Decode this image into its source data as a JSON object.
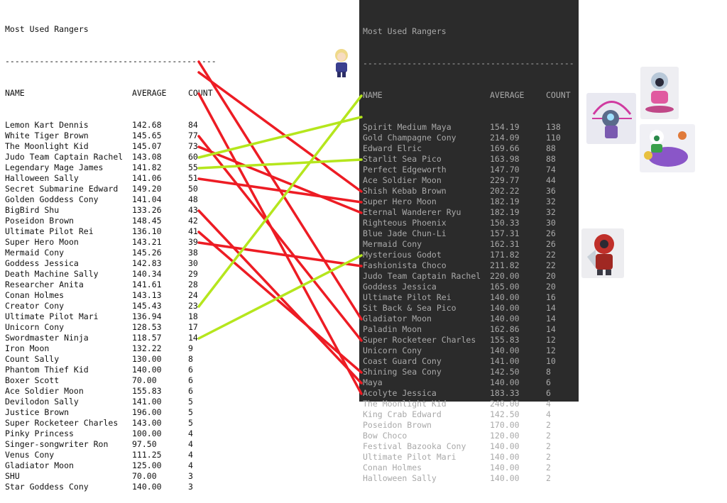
{
  "left_table": {
    "title": "Most Used Rangers",
    "separator": "-------------------------------------------",
    "headers": [
      "NAME",
      "AVERAGE",
      "COUNT"
    ],
    "rows": [
      [
        "Lemon Kart Dennis",
        "142.68",
        "84"
      ],
      [
        "White Tiger Brown",
        "145.65",
        "77"
      ],
      [
        "The Moonlight Kid",
        "145.07",
        "73"
      ],
      [
        "Judo Team Captain Rachel",
        "143.08",
        "60"
      ],
      [
        "Legendary Mage James",
        "141.82",
        "55"
      ],
      [
        "Halloween Sally",
        "141.06",
        "51"
      ],
      [
        "Secret Submarine Edward",
        "149.20",
        "50"
      ],
      [
        "Golden Goddess Cony",
        "141.04",
        "48"
      ],
      [
        "BigBird Shu",
        "133.26",
        "43"
      ],
      [
        "Poseidon Brown",
        "148.45",
        "42"
      ],
      [
        "Ultimate Pilot Rei",
        "136.10",
        "41"
      ],
      [
        "Super Hero Moon",
        "143.21",
        "39"
      ],
      [
        "Mermaid Cony",
        "145.26",
        "38"
      ],
      [
        "Goddess Jessica",
        "142.83",
        "30"
      ],
      [
        "Death Machine Sally",
        "140.34",
        "29"
      ],
      [
        "Researcher Anita",
        "141.61",
        "28"
      ],
      [
        "Conan Holmes",
        "143.13",
        "24"
      ],
      [
        "Creator Cony",
        "145.43",
        "23"
      ],
      [
        "Ultimate Pilot Mari",
        "136.94",
        "18"
      ],
      [
        "Unicorn Cony",
        "128.53",
        "17"
      ],
      [
        "Swordmaster Ninja",
        "118.57",
        "14"
      ],
      [
        "Iron Moon",
        "132.22",
        "9"
      ],
      [
        "Count Sally",
        "130.00",
        "8"
      ],
      [
        "Phantom Thief Kid",
        "140.00",
        "6"
      ],
      [
        "Boxer Scott",
        "70.00",
        "6"
      ],
      [
        "Ace Soldier Moon",
        "155.83",
        "6"
      ],
      [
        "Devilodon Sally",
        "141.00",
        "5"
      ],
      [
        "Justice Brown",
        "196.00",
        "5"
      ],
      [
        "Super Rocketeer Charles",
        "143.00",
        "5"
      ],
      [
        "Pinky Princess",
        "100.00",
        "4"
      ],
      [
        "Singer-songwriter Ron",
        "97.50",
        "4"
      ],
      [
        "Venus Cony",
        "111.25",
        "4"
      ],
      [
        "Gladiator Moon",
        "125.00",
        "4"
      ],
      [
        "SHU",
        "70.00",
        "3"
      ],
      [
        "Star Goddess Cony",
        "140.00",
        "3"
      ]
    ]
  },
  "right_table": {
    "title": "Most Used Rangers",
    "separator": "-------------------------------------------",
    "headers": [
      "NAME",
      "AVERAGE",
      "COUNT"
    ],
    "rows": [
      [
        "Spirit Medium Maya",
        "154.19",
        "138"
      ],
      [
        "Gold Champagne Cony",
        "214.09",
        "110"
      ],
      [
        "Edward Elric",
        "169.66",
        "88"
      ],
      [
        "Starlit Sea Pico",
        "163.98",
        "88"
      ],
      [
        "Perfect Edgeworth",
        "147.70",
        "74"
      ],
      [
        "Ace Soldier Moon",
        "229.77",
        "44"
      ],
      [
        "Shish Kebab Brown",
        "202.22",
        "36"
      ],
      [
        "Super Hero Moon",
        "182.19",
        "32"
      ],
      [
        "Eternal Wanderer Ryu",
        "182.19",
        "32"
      ],
      [
        "Righteous Phoenix",
        "150.33",
        "30"
      ],
      [
        "Blue Jade Chun-Li",
        "157.31",
        "26"
      ],
      [
        "Mermaid Cony",
        "162.31",
        "26"
      ],
      [
        "Mysterious Godot",
        "171.82",
        "22"
      ],
      [
        "Fashionista Choco",
        "211.82",
        "22"
      ],
      [
        "Judo Team Captain Rachel",
        "220.00",
        "20"
      ],
      [
        "Goddess Jessica",
        "165.00",
        "20"
      ],
      [
        "Ultimate Pilot Rei",
        "140.00",
        "16"
      ],
      [
        "Sit Back & Sea Pico",
        "140.00",
        "14"
      ],
      [
        "Gladiator Moon",
        "140.00",
        "14"
      ],
      [
        "Paladin Moon",
        "162.86",
        "14"
      ],
      [
        "Super Rocketeer Charles",
        "155.83",
        "12"
      ],
      [
        "Unicorn Cony",
        "140.00",
        "12"
      ],
      [
        "Coast Guard Cony",
        "141.00",
        "10"
      ],
      [
        "Shining Sea Cony",
        "142.50",
        "8"
      ],
      [
        "Maya",
        "140.00",
        "6"
      ],
      [
        "Acolyte Jessica",
        "183.33",
        "6"
      ],
      [
        "The Moonlight Kid",
        "240.00",
        "4"
      ],
      [
        "King Crab Edward",
        "142.50",
        "4"
      ],
      [
        "Poseidon Brown",
        "170.00",
        "2"
      ],
      [
        "Bow Choco",
        "120.00",
        "2"
      ],
      [
        "Festival Bazooka Cony",
        "140.00",
        "2"
      ],
      [
        "Ultimate Pilot Mari",
        "140.00",
        "2"
      ],
      [
        "Conan Holmes",
        "140.00",
        "2"
      ],
      [
        "Halloween Sally",
        "140.00",
        "2"
      ]
    ]
  },
  "connections": {
    "green": [
      [
        25,
        5
      ],
      [
        11,
        7
      ],
      [
        12,
        11
      ],
      [
        28,
        20
      ]
    ],
    "red": [
      [
        2,
        26
      ],
      [
        3,
        14
      ],
      [
        5,
        33
      ],
      [
        9,
        28
      ],
      [
        10,
        16
      ],
      [
        13,
        15
      ],
      [
        16,
        32
      ],
      [
        18,
        31
      ],
      [
        19,
        21
      ]
    ]
  },
  "colors": {
    "left_bg": "#ffffff",
    "left_text": "#111111",
    "right_bg": "#2b2b2b",
    "right_text": "#a9a9a9",
    "line_green": "#b5e61d",
    "line_red": "#ed1c24"
  },
  "sprites": [
    {
      "name": "blonde-character-sprite",
      "bg": "#f1e6c0",
      "accent": "#3a3f8f"
    },
    {
      "name": "archer-robot-sprite",
      "bg": "#e6e6f0",
      "accent": "#d03aa0"
    },
    {
      "name": "pink-robot-sprite",
      "bg": "#ececf0",
      "accent": "#e05aa0"
    },
    {
      "name": "mermaid-whale-sprite",
      "bg": "#eeeef4",
      "accent": "#8a56c8"
    },
    {
      "name": "red-armor-sprite",
      "bg": "#ececee",
      "accent": "#c0302a"
    }
  ]
}
